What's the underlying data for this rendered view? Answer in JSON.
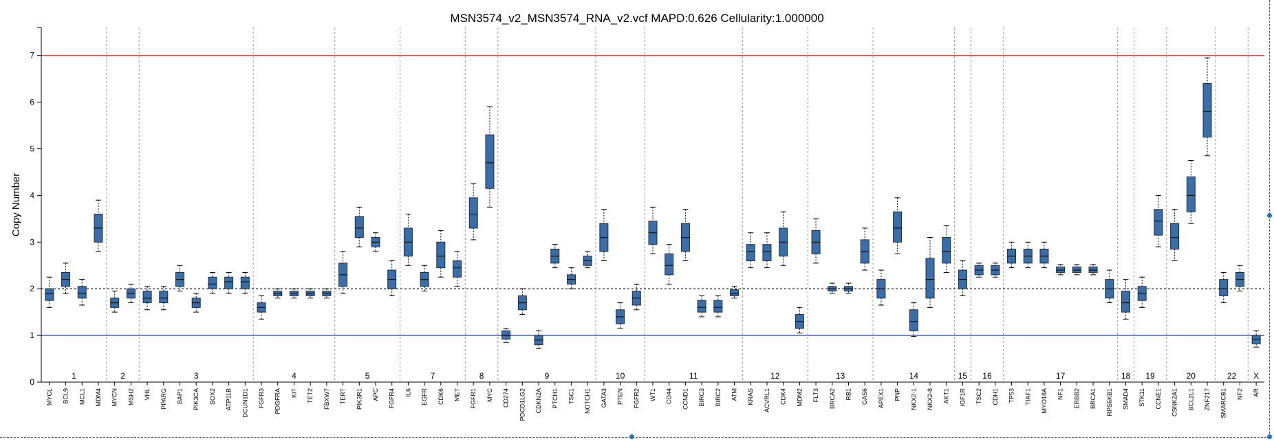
{
  "chart_data": {
    "type": "boxplot",
    "title": "MSN3574_v2_MSN3574_RNA_v2.vcf MAPD:0.626 Cellularity:1.000000",
    "ylabel": "Copy Number",
    "xlabel": "",
    "ylim": [
      0,
      7.6
    ],
    "yticks": [
      0,
      1,
      2,
      3,
      4,
      5,
      6,
      7
    ],
    "grid": false,
    "reference_lines": [
      {
        "y": 7,
        "color": "#e8403a",
        "style": "solid"
      },
      {
        "y": 2,
        "color": "#000000",
        "style": "dashed"
      },
      {
        "y": 1,
        "color": "#3a56d4",
        "style": "solid"
      }
    ],
    "box_fill": "#3a6ea8",
    "box_stroke": "#1c2f4a",
    "genes": [
      {
        "name": "MYCL",
        "chr": "1",
        "whisker_low": 1.6,
        "q1": 1.75,
        "median": 1.9,
        "q3": 2.0,
        "whisker_high": 2.25
      },
      {
        "name": "BCL9",
        "chr": "1",
        "whisker_low": 1.9,
        "q1": 2.05,
        "median": 2.2,
        "q3": 2.35,
        "whisker_high": 2.55
      },
      {
        "name": "MCL1",
        "chr": "1",
        "whisker_low": 1.65,
        "q1": 1.8,
        "median": 1.9,
        "q3": 2.05,
        "whisker_high": 2.2
      },
      {
        "name": "MDM4",
        "chr": "1",
        "whisker_low": 2.8,
        "q1": 3.0,
        "median": 3.3,
        "q3": 3.6,
        "whisker_high": 3.9
      },
      {
        "name": "MYCN",
        "chr": "2",
        "whisker_low": 1.5,
        "q1": 1.6,
        "median": 1.7,
        "q3": 1.8,
        "whisker_high": 1.95
      },
      {
        "name": "MSH2",
        "chr": "2",
        "whisker_low": 1.7,
        "q1": 1.8,
        "median": 1.9,
        "q3": 2.0,
        "whisker_high": 2.1
      },
      {
        "name": "VHL",
        "chr": "3",
        "whisker_low": 1.55,
        "q1": 1.7,
        "median": 1.8,
        "q3": 1.95,
        "whisker_high": 2.05
      },
      {
        "name": "PPARG",
        "chr": "3",
        "whisker_low": 1.55,
        "q1": 1.7,
        "median": 1.8,
        "q3": 1.95,
        "whisker_high": 2.05
      },
      {
        "name": "BAP1",
        "chr": "3",
        "whisker_low": 1.95,
        "q1": 2.05,
        "median": 2.2,
        "q3": 2.35,
        "whisker_high": 2.5
      },
      {
        "name": "PIK3CA",
        "chr": "3",
        "whisker_low": 1.5,
        "q1": 1.6,
        "median": 1.7,
        "q3": 1.8,
        "whisker_high": 1.9
      },
      {
        "name": "SOX2",
        "chr": "3",
        "whisker_low": 1.9,
        "q1": 2.0,
        "median": 2.1,
        "q3": 2.25,
        "whisker_high": 2.35
      },
      {
        "name": "ATP11B",
        "chr": "3",
        "whisker_low": 1.9,
        "q1": 2.0,
        "median": 2.15,
        "q3": 2.25,
        "whisker_high": 2.35
      },
      {
        "name": "DCUN1D1",
        "chr": "3",
        "whisker_low": 1.9,
        "q1": 2.0,
        "median": 2.15,
        "q3": 2.25,
        "whisker_high": 2.35
      },
      {
        "name": "FGFR3",
        "chr": "4",
        "whisker_low": 1.35,
        "q1": 1.5,
        "median": 1.6,
        "q3": 1.7,
        "whisker_high": 1.85
      },
      {
        "name": "PDGFRA",
        "chr": "4",
        "whisker_low": 1.8,
        "q1": 1.85,
        "median": 1.9,
        "q3": 1.95,
        "whisker_high": 2.0
      },
      {
        "name": "KIT",
        "chr": "4",
        "whisker_low": 1.8,
        "q1": 1.85,
        "median": 1.9,
        "q3": 1.95,
        "whisker_high": 2.0
      },
      {
        "name": "TET2",
        "chr": "4",
        "whisker_low": 1.8,
        "q1": 1.85,
        "median": 1.9,
        "q3": 1.95,
        "whisker_high": 2.0
      },
      {
        "name": "FBXW7",
        "chr": "4",
        "whisker_low": 1.8,
        "q1": 1.85,
        "median": 1.9,
        "q3": 1.95,
        "whisker_high": 2.0
      },
      {
        "name": "TERT",
        "chr": "5",
        "whisker_low": 1.9,
        "q1": 2.05,
        "median": 2.3,
        "q3": 2.55,
        "whisker_high": 2.8
      },
      {
        "name": "PIK3R1",
        "chr": "5",
        "whisker_low": 2.9,
        "q1": 3.1,
        "median": 3.3,
        "q3": 3.55,
        "whisker_high": 3.75
      },
      {
        "name": "APC",
        "chr": "5",
        "whisker_low": 2.8,
        "q1": 2.9,
        "median": 3.0,
        "q3": 3.1,
        "whisker_high": 3.2
      },
      {
        "name": "FGFR4",
        "chr": "5",
        "whisker_low": 1.85,
        "q1": 2.0,
        "median": 2.2,
        "q3": 2.4,
        "whisker_high": 2.6
      },
      {
        "name": "IL6",
        "chr": "7",
        "whisker_low": 2.5,
        "q1": 2.7,
        "median": 3.0,
        "q3": 3.3,
        "whisker_high": 3.6
      },
      {
        "name": "EGFR",
        "chr": "7",
        "whisker_low": 1.95,
        "q1": 2.05,
        "median": 2.2,
        "q3": 2.35,
        "whisker_high": 2.5
      },
      {
        "name": "CDK6",
        "chr": "7",
        "whisker_low": 2.25,
        "q1": 2.45,
        "median": 2.7,
        "q3": 3.0,
        "whisker_high": 3.25
      },
      {
        "name": "MET",
        "chr": "7",
        "whisker_low": 2.05,
        "q1": 2.25,
        "median": 2.45,
        "q3": 2.6,
        "whisker_high": 2.8
      },
      {
        "name": "FGFR1",
        "chr": "8",
        "whisker_low": 3.05,
        "q1": 3.3,
        "median": 3.6,
        "q3": 3.95,
        "whisker_high": 4.25
      },
      {
        "name": "MYC",
        "chr": "8",
        "whisker_low": 3.75,
        "q1": 4.15,
        "median": 4.7,
        "q3": 5.3,
        "whisker_high": 5.9
      },
      {
        "name": "CD274",
        "chr": "9",
        "whisker_low": 0.85,
        "q1": 0.92,
        "median": 1.0,
        "q3": 1.1,
        "whisker_high": 1.15
      },
      {
        "name": "PDCD1LG2",
        "chr": "9",
        "whisker_low": 1.45,
        "q1": 1.55,
        "median": 1.7,
        "q3": 1.85,
        "whisker_high": 2.0
      },
      {
        "name": "CDKN2A",
        "chr": "9",
        "whisker_low": 0.72,
        "q1": 0.8,
        "median": 0.9,
        "q3": 1.0,
        "whisker_high": 1.1
      },
      {
        "name": "PTCH1",
        "chr": "9",
        "whisker_low": 2.45,
        "q1": 2.55,
        "median": 2.7,
        "q3": 2.85,
        "whisker_high": 2.95
      },
      {
        "name": "TSC1",
        "chr": "9",
        "whisker_low": 2.0,
        "q1": 2.1,
        "median": 2.2,
        "q3": 2.3,
        "whisker_high": 2.45
      },
      {
        "name": "NOTCH1",
        "chr": "9",
        "whisker_low": 2.45,
        "q1": 2.5,
        "median": 2.6,
        "q3": 2.7,
        "whisker_high": 2.8
      },
      {
        "name": "GATA3",
        "chr": "10",
        "whisker_low": 2.6,
        "q1": 2.8,
        "median": 3.1,
        "q3": 3.4,
        "whisker_high": 3.7
      },
      {
        "name": "PTEN",
        "chr": "10",
        "whisker_low": 1.15,
        "q1": 1.25,
        "median": 1.4,
        "q3": 1.55,
        "whisker_high": 1.7
      },
      {
        "name": "FGFR2",
        "chr": "10",
        "whisker_low": 1.55,
        "q1": 1.65,
        "median": 1.8,
        "q3": 1.95,
        "whisker_high": 2.1
      },
      {
        "name": "WT1",
        "chr": "11",
        "whisker_low": 2.75,
        "q1": 2.95,
        "median": 3.2,
        "q3": 3.45,
        "whisker_high": 3.75
      },
      {
        "name": "CD44",
        "chr": "11",
        "whisker_low": 2.1,
        "q1": 2.3,
        "median": 2.5,
        "q3": 2.75,
        "whisker_high": 2.95
      },
      {
        "name": "CCND1",
        "chr": "11",
        "whisker_low": 2.6,
        "q1": 2.8,
        "median": 3.1,
        "q3": 3.4,
        "whisker_high": 3.7
      },
      {
        "name": "BIRC3",
        "chr": "11",
        "whisker_low": 1.4,
        "q1": 1.5,
        "median": 1.6,
        "q3": 1.75,
        "whisker_high": 1.85
      },
      {
        "name": "BIRC2",
        "chr": "11",
        "whisker_low": 1.4,
        "q1": 1.5,
        "median": 1.6,
        "q3": 1.75,
        "whisker_high": 1.85
      },
      {
        "name": "ATM",
        "chr": "11",
        "whisker_low": 1.8,
        "q1": 1.85,
        "median": 1.9,
        "q3": 1.98,
        "whisker_high": 2.05
      },
      {
        "name": "KRAS",
        "chr": "12",
        "whisker_low": 2.45,
        "q1": 2.6,
        "median": 2.8,
        "q3": 2.95,
        "whisker_high": 3.2
      },
      {
        "name": "ACVRL1",
        "chr": "12",
        "whisker_low": 2.45,
        "q1": 2.6,
        "median": 2.8,
        "q3": 2.95,
        "whisker_high": 3.2
      },
      {
        "name": "CDK4",
        "chr": "12",
        "whisker_low": 2.5,
        "q1": 2.7,
        "median": 3.0,
        "q3": 3.3,
        "whisker_high": 3.65
      },
      {
        "name": "MDM2",
        "chr": "12",
        "whisker_low": 1.05,
        "q1": 1.15,
        "median": 1.3,
        "q3": 1.45,
        "whisker_high": 1.6
      },
      {
        "name": "FLT3",
        "chr": "13",
        "whisker_low": 2.55,
        "q1": 2.75,
        "median": 3.0,
        "q3": 3.25,
        "whisker_high": 3.5
      },
      {
        "name": "BRCA2",
        "chr": "13",
        "whisker_low": 1.9,
        "q1": 1.95,
        "median": 2.0,
        "q3": 2.05,
        "whisker_high": 2.12
      },
      {
        "name": "RB1",
        "chr": "13",
        "whisker_low": 1.9,
        "q1": 1.95,
        "median": 2.0,
        "q3": 2.05,
        "whisker_high": 2.12
      },
      {
        "name": "GAS6",
        "chr": "13",
        "whisker_low": 2.4,
        "q1": 2.55,
        "median": 2.8,
        "q3": 3.05,
        "whisker_high": 3.3
      },
      {
        "name": "APEX1",
        "chr": "14",
        "whisker_low": 1.65,
        "q1": 1.8,
        "median": 2.0,
        "q3": 2.2,
        "whisker_high": 2.4
      },
      {
        "name": "PNP",
        "chr": "14",
        "whisker_low": 2.75,
        "q1": 3.0,
        "median": 3.3,
        "q3": 3.65,
        "whisker_high": 3.95
      },
      {
        "name": "NKX2-1",
        "chr": "14",
        "whisker_low": 0.98,
        "q1": 1.1,
        "median": 1.3,
        "q3": 1.55,
        "whisker_high": 1.7
      },
      {
        "name": "NKX2-8",
        "chr": "14",
        "whisker_low": 1.6,
        "q1": 1.8,
        "median": 2.2,
        "q3": 2.65,
        "whisker_high": 3.1
      },
      {
        "name": "AKT1",
        "chr": "14",
        "whisker_low": 2.35,
        "q1": 2.55,
        "median": 2.8,
        "q3": 3.1,
        "whisker_high": 3.35
      },
      {
        "name": "IGF1R",
        "chr": "15",
        "whisker_low": 1.85,
        "q1": 2.0,
        "median": 2.2,
        "q3": 2.4,
        "whisker_high": 2.6
      },
      {
        "name": "TSC2",
        "chr": "16",
        "whisker_low": 2.25,
        "q1": 2.3,
        "median": 2.4,
        "q3": 2.5,
        "whisker_high": 2.55
      },
      {
        "name": "CDH1",
        "chr": "16",
        "whisker_low": 2.25,
        "q1": 2.3,
        "median": 2.4,
        "q3": 2.5,
        "whisker_high": 2.55
      },
      {
        "name": "TP53",
        "chr": "17",
        "whisker_low": 2.45,
        "q1": 2.55,
        "median": 2.7,
        "q3": 2.85,
        "whisker_high": 3.0
      },
      {
        "name": "TIAF1",
        "chr": "17",
        "whisker_low": 2.45,
        "q1": 2.55,
        "median": 2.7,
        "q3": 2.85,
        "whisker_high": 3.0
      },
      {
        "name": "MYO18A",
        "chr": "17",
        "whisker_low": 2.45,
        "q1": 2.55,
        "median": 2.7,
        "q3": 2.85,
        "whisker_high": 3.0
      },
      {
        "name": "NF1",
        "chr": "17",
        "whisker_low": 2.3,
        "q1": 2.35,
        "median": 2.4,
        "q3": 2.47,
        "whisker_high": 2.52
      },
      {
        "name": "ERBB2",
        "chr": "17",
        "whisker_low": 2.3,
        "q1": 2.35,
        "median": 2.4,
        "q3": 2.47,
        "whisker_high": 2.52
      },
      {
        "name": "BRCA1",
        "chr": "17",
        "whisker_low": 2.3,
        "q1": 2.35,
        "median": 2.4,
        "q3": 2.47,
        "whisker_high": 2.52
      },
      {
        "name": "RPS6KB1",
        "chr": "17",
        "whisker_low": 1.7,
        "q1": 1.8,
        "median": 2.0,
        "q3": 2.2,
        "whisker_high": 2.4
      },
      {
        "name": "SMAD4",
        "chr": "18",
        "whisker_low": 1.35,
        "q1": 1.5,
        "median": 1.7,
        "q3": 1.95,
        "whisker_high": 2.2
      },
      {
        "name": "STK11",
        "chr": "19",
        "whisker_low": 1.6,
        "q1": 1.75,
        "median": 1.9,
        "q3": 2.05,
        "whisker_high": 2.25
      },
      {
        "name": "CCNE1",
        "chr": "19",
        "whisker_low": 2.9,
        "q1": 3.15,
        "median": 3.45,
        "q3": 3.7,
        "whisker_high": 4.0
      },
      {
        "name": "CSNK2A1",
        "chr": "20",
        "whisker_low": 2.6,
        "q1": 2.85,
        "median": 3.1,
        "q3": 3.4,
        "whisker_high": 3.7
      },
      {
        "name": "BCL2L1",
        "chr": "20",
        "whisker_low": 3.4,
        "q1": 3.65,
        "median": 4.0,
        "q3": 4.4,
        "whisker_high": 4.75
      },
      {
        "name": "ZNF217",
        "chr": "20",
        "whisker_low": 4.85,
        "q1": 5.25,
        "median": 5.8,
        "q3": 6.4,
        "whisker_high": 6.95
      },
      {
        "name": "SMARCB1",
        "chr": "22",
        "whisker_low": 1.7,
        "q1": 1.85,
        "median": 2.0,
        "q3": 2.2,
        "whisker_high": 2.35
      },
      {
        "name": "NF2",
        "chr": "22",
        "whisker_low": 1.95,
        "q1": 2.05,
        "median": 2.2,
        "q3": 2.35,
        "whisker_high": 2.5
      },
      {
        "name": "AR",
        "chr": "X",
        "whisker_low": 0.75,
        "q1": 0.82,
        "median": 0.92,
        "q3": 1.0,
        "whisker_high": 1.1
      }
    ]
  }
}
